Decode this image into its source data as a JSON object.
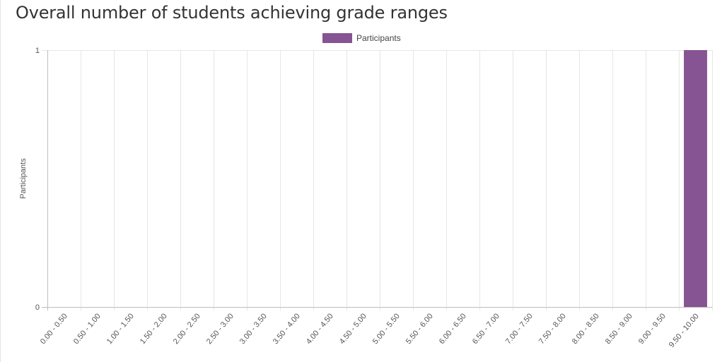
{
  "chart_data": {
    "type": "bar",
    "title": "Overall number of students achieving grade ranges",
    "xlabel": "",
    "ylabel": "Participants",
    "categories": [
      "0.00 - 0.50",
      "0.50 - 1.00",
      "1.00 - 1.50",
      "1.50 - 2.00",
      "2.00 - 2.50",
      "2.50 - 3.00",
      "3.00 - 3.50",
      "3.50 - 4.00",
      "4.00 - 4.50",
      "4.50 - 5.00",
      "5.00 - 5.50",
      "5.50 - 6.00",
      "6.00 - 6.50",
      "6.50 - 7.00",
      "7.00 - 7.50",
      "7.50 - 8.00",
      "8.00 - 8.50",
      "8.50 - 9.00",
      "9.00 - 9.50",
      "9.50 - 10.00"
    ],
    "series": [
      {
        "name": "Participants",
        "color": "#865492",
        "values": [
          0,
          0,
          0,
          0,
          0,
          0,
          0,
          0,
          0,
          0,
          0,
          0,
          0,
          0,
          0,
          0,
          0,
          0,
          0,
          1
        ]
      }
    ],
    "ylim": [
      0,
      1
    ],
    "yticks": [
      "0",
      "1"
    ],
    "grid": true,
    "legend": "top-center"
  }
}
